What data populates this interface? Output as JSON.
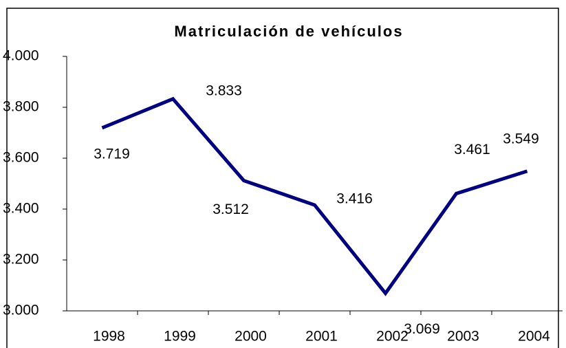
{
  "chart_data": {
    "type": "line",
    "title": "Matriculación de vehículos",
    "categories": [
      "1998",
      "1999",
      "2000",
      "2001",
      "2002",
      "2003",
      "2004"
    ],
    "series": [
      {
        "color": "#000080",
        "values": [
          3719,
          3833,
          3512,
          3416,
          3069,
          3461,
          3549
        ],
        "value_labels": [
          "3.719",
          "3.833",
          "3.512",
          "3.416",
          "3.069",
          "3.461",
          "3.549"
        ]
      }
    ],
    "ylim": [
      3000,
      4000
    ],
    "yticks": [
      {
        "value": 3000,
        "label": "3.000"
      },
      {
        "value": 3200,
        "label": "3.200"
      },
      {
        "value": 3400,
        "label": "3.400"
      },
      {
        "value": 3600,
        "label": "3.600"
      },
      {
        "value": 3800,
        "label": "3.800"
      },
      {
        "value": 4000,
        "label": "4.000"
      }
    ],
    "grid": false
  }
}
